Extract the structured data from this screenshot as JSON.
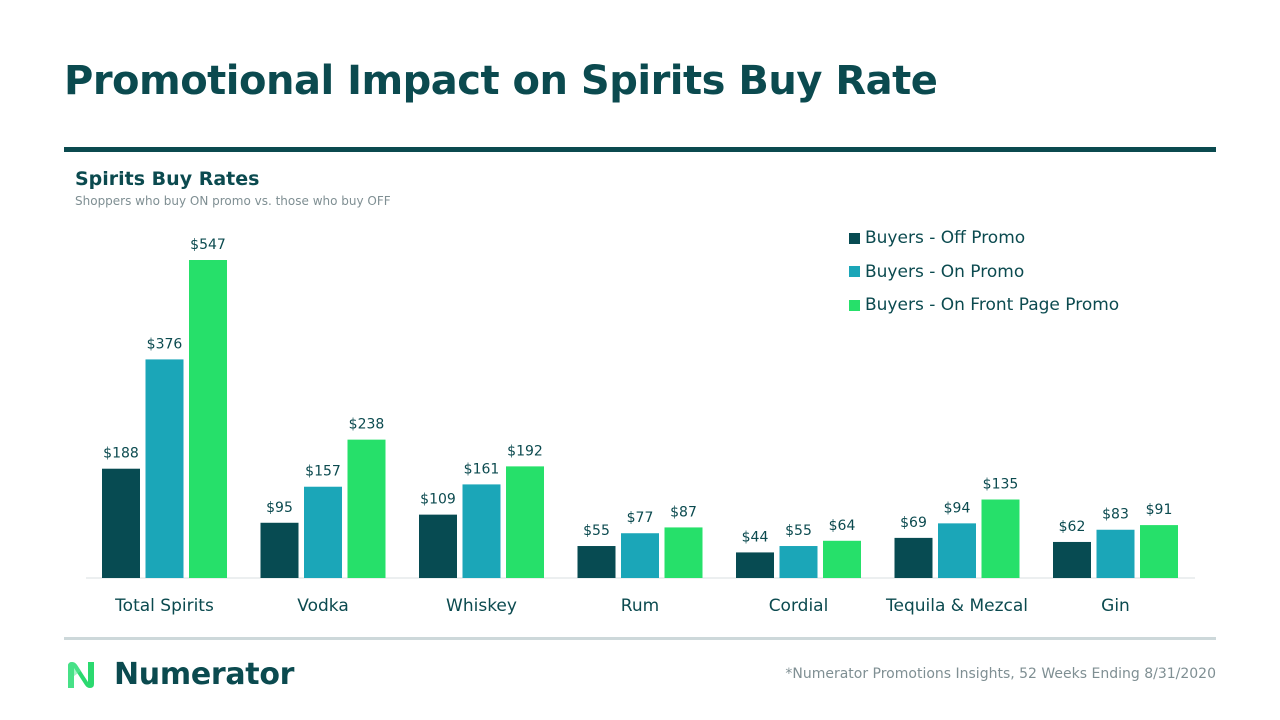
{
  "page": {
    "title": "Promotional Impact on Spirits Buy Rate",
    "footnote": "*Numerator Promotions Insights, 52 Weeks Ending 8/31/2020"
  },
  "brand": {
    "name": "Numerator",
    "logo_icon": "numerator-n-logo-icon",
    "logo_color": "#2bd96f"
  },
  "colors": {
    "off_promo": "#074b52",
    "on_promo": "#1ba6b8",
    "front_page": "#26e06a",
    "text": "#0b4a4f"
  },
  "chart_data": {
    "type": "bar",
    "title": "Spirits Buy Rates",
    "subtitle": "Shoppers who buy ON promo vs. those who buy OFF",
    "xlabel": "",
    "ylabel": "",
    "ylim": [
      0,
      600
    ],
    "value_prefix": "$",
    "legend_position": "top-right",
    "grid": false,
    "categories": [
      "Total Spirits",
      "Vodka",
      "Whiskey",
      "Rum",
      "Cordial",
      "Tequila & Mezcal",
      "Gin"
    ],
    "series": [
      {
        "name": "Buyers - Off Promo",
        "color": "#074b52",
        "values": [
          188,
          95,
          109,
          55,
          44,
          69,
          62
        ]
      },
      {
        "name": "Buyers - On Promo",
        "color": "#1ba6b8",
        "values": [
          376,
          157,
          161,
          77,
          55,
          94,
          83
        ]
      },
      {
        "name": "Buyers - On Front Page Promo",
        "color": "#26e06a",
        "values": [
          547,
          238,
          192,
          87,
          64,
          135,
          91
        ]
      }
    ]
  }
}
